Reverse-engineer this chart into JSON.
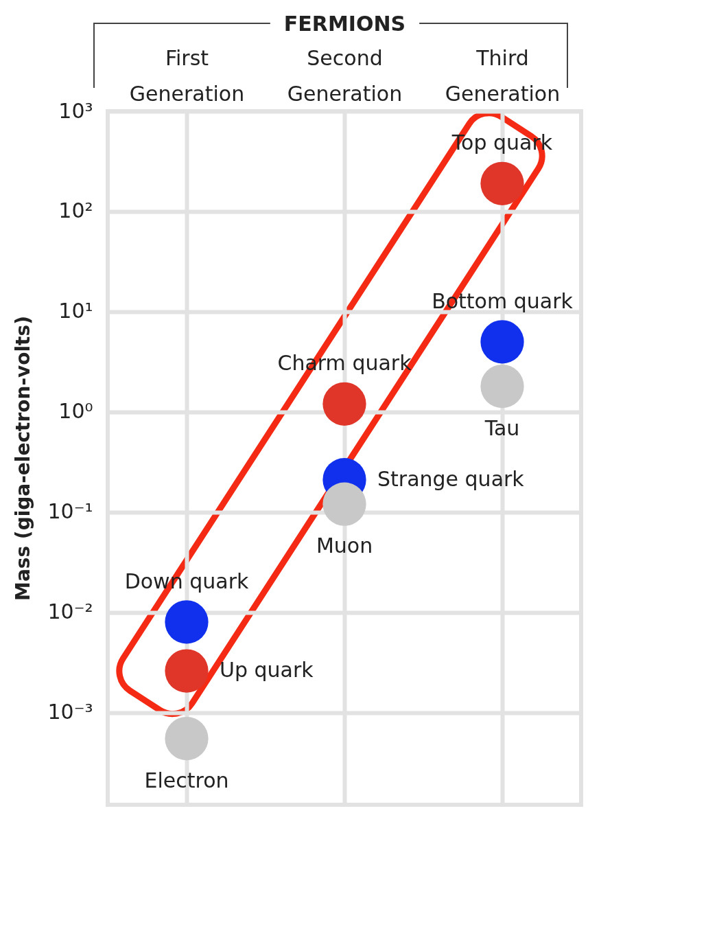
{
  "chart_data": {
    "type": "scatter",
    "xlabel": "FERMIONS",
    "ylabel": "Mass (giga-electron-volts)",
    "categories": [
      "First Generation",
      "Second Generation",
      "Third Generation"
    ],
    "series": [
      {
        "color": "#e0362a",
        "values": [
          0.0026,
          1.2,
          190
        ]
      },
      {
        "color": "#1030ee",
        "values": [
          0.008,
          0.21,
          5
        ]
      },
      {
        "color": "#c8c8c8",
        "values": [
          0.00055,
          0.12,
          1.8
        ]
      }
    ],
    "log": "y",
    "ylim": [
      0.00012,
      1000
    ],
    "yticks": [
      {
        "value": 1000,
        "label": "10³"
      },
      {
        "value": 100,
        "label": "10²"
      },
      {
        "value": 10,
        "label": "10¹"
      },
      {
        "value": 1,
        "label": "10⁰"
      },
      {
        "value": 0.1,
        "label": "10⁻¹"
      },
      {
        "value": 0.01,
        "label": "10⁻²"
      },
      {
        "value": 0.001,
        "label": "10⁻³"
      }
    ],
    "grid": true,
    "marker": "circle",
    "annotations": [
      {
        "text": "Top quark",
        "x": "Third Generation",
        "y": 190
      },
      {
        "text": "Bottom quark",
        "x": "Third Generation",
        "y": 5
      },
      {
        "text": "Charm quark",
        "x": "Second Generation",
        "y": 1.2
      },
      {
        "text": "Tau",
        "x": "Third Generation",
        "y": 1.8
      },
      {
        "text": "Strange quark",
        "x": "Second Generation",
        "y": 0.21
      },
      {
        "text": "Muon",
        "x": "Second Generation",
        "y": 0.12
      },
      {
        "text": "Down quark",
        "x": "First Generation",
        "y": 0.008
      },
      {
        "text": "Up quark",
        "x": "First Generation",
        "y": 0.0026
      },
      {
        "text": "Electron",
        "x": "First Generation",
        "y": 0.00055
      }
    ]
  }
}
